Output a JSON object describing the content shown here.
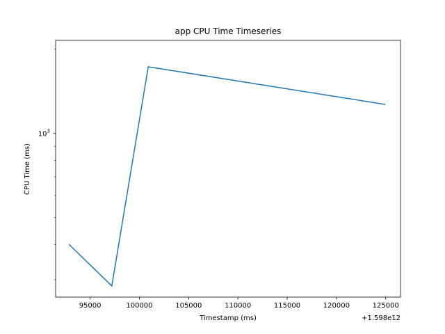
{
  "chart_data": {
    "type": "line",
    "title": "app CPU Time Timeseries",
    "xlabel": "Timestamp (ms)",
    "ylabel": "CPU Time (ms)",
    "x_offset_label": "+1.598e12",
    "xscale": "linear",
    "yscale": "log",
    "xlim": [
      91500,
      126500
    ],
    "ylim": [
      260,
      2150
    ],
    "x_ticks": [
      95000,
      100000,
      105000,
      110000,
      115000,
      120000,
      125000
    ],
    "x_tick_labels": [
      "95000",
      "100000",
      "105000",
      "110000",
      "115000",
      "120000",
      "125000"
    ],
    "y_major_ticks": [
      1000
    ],
    "y_tick_base": "10",
    "y_tick_exp": "3",
    "y_minor_ticks": [
      300,
      400,
      500,
      600,
      700,
      800,
      900,
      2000
    ],
    "grid": false,
    "series": [
      {
        "color": "#1f77b4",
        "x": [
          92900,
          97200,
          100900,
          124900
        ],
        "y": [
          400,
          285,
          1730,
          1270
        ]
      }
    ]
  }
}
